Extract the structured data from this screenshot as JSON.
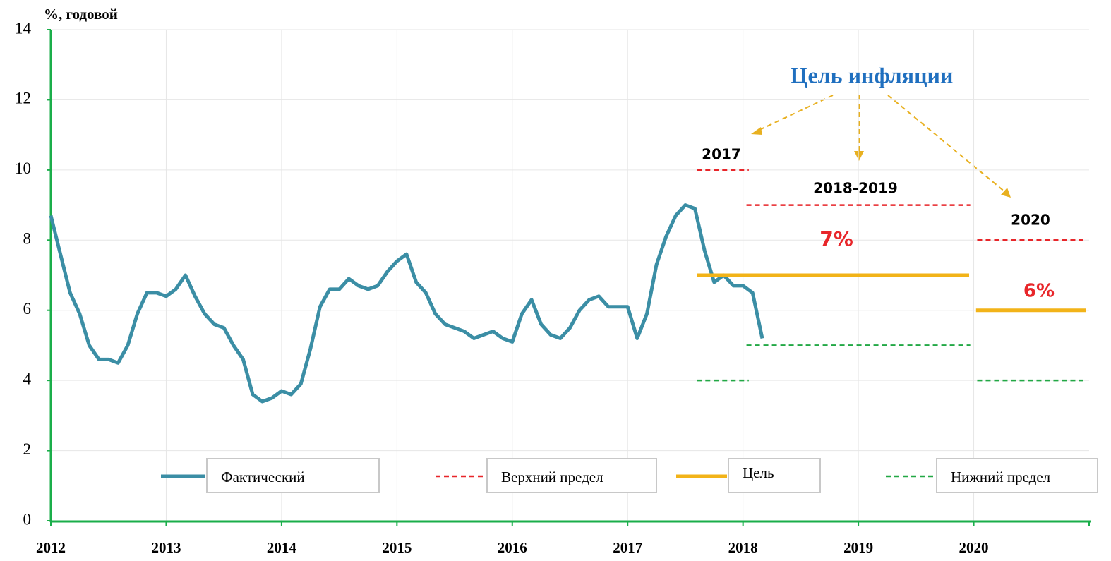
{
  "chart_data": {
    "type": "line",
    "y_label": "%, годовой",
    "annotations": [
      "Цель инфляции",
      "2017",
      "2018-2019",
      "2020",
      "7%",
      "6%"
    ],
    "xlim": [
      2012,
      2021
    ],
    "xticks": [
      2012,
      2013,
      2014,
      2015,
      2016,
      2017,
      2018,
      2019,
      2020
    ],
    "ylim": [
      0,
      14
    ],
    "yticks": [
      0,
      2,
      4,
      6,
      8,
      10,
      12,
      14
    ],
    "grid": true,
    "series": [
      {
        "name": "Фактический",
        "color": "#3b8ea5",
        "style": "solid",
        "x": [
          2012.0,
          2012.083,
          2012.167,
          2012.25,
          2012.333,
          2012.417,
          2012.5,
          2012.583,
          2012.667,
          2012.75,
          2012.833,
          2012.917,
          2013.0,
          2013.083,
          2013.167,
          2013.25,
          2013.333,
          2013.417,
          2013.5,
          2013.583,
          2013.667,
          2013.75,
          2013.833,
          2013.917,
          2014.0,
          2014.083,
          2014.167,
          2014.25,
          2014.333,
          2014.417,
          2014.5,
          2014.583,
          2014.667,
          2014.75,
          2014.833,
          2014.917,
          2015.0,
          2015.083,
          2015.167,
          2015.25,
          2015.333,
          2015.417,
          2015.5,
          2015.583,
          2015.667,
          2015.75,
          2015.833,
          2015.917,
          2016.0,
          2016.083,
          2016.167,
          2016.25,
          2016.333,
          2016.417,
          2016.5,
          2016.583,
          2016.667,
          2016.75,
          2016.833,
          2016.917,
          2017.0,
          2017.083,
          2017.167,
          2017.25,
          2017.333,
          2017.417,
          2017.5,
          2017.583,
          2017.667,
          2017.75,
          2017.833,
          2017.917,
          2018.0,
          2018.083,
          2018.167
        ],
        "values": [
          8.7,
          7.6,
          6.5,
          5.9,
          5.0,
          4.6,
          4.6,
          4.5,
          5.0,
          5.9,
          6.5,
          6.5,
          6.4,
          6.6,
          7.0,
          6.4,
          5.9,
          5.6,
          5.5,
          5.0,
          4.6,
          3.6,
          3.4,
          3.5,
          3.7,
          3.6,
          3.9,
          4.9,
          6.1,
          6.6,
          6.6,
          6.9,
          6.7,
          6.6,
          6.7,
          7.1,
          7.4,
          7.6,
          6.8,
          6.5,
          5.9,
          5.6,
          5.5,
          5.4,
          5.2,
          5.3,
          5.4,
          5.2,
          5.1,
          5.9,
          6.3,
          5.6,
          5.3,
          5.2,
          5.5,
          6.0,
          6.3,
          6.4,
          6.1,
          6.1,
          6.1,
          5.2,
          5.9,
          7.3,
          8.1,
          8.7,
          9.0,
          8.9,
          7.7,
          6.8,
          7.0,
          6.7,
          6.7,
          6.5,
          5.2
        ]
      },
      {
        "name": "Верхний предел",
        "color": "#e8262a",
        "style": "dashed",
        "x": [
          2017.6,
          2018.05,
          2018.04,
          2018.03,
          2019.97,
          2020.0,
          2020.03,
          2020.95
        ],
        "values": [
          10,
          10,
          null,
          9,
          9,
          null,
          8,
          8
        ]
      },
      {
        "name": "Цель",
        "color": "#f2b318",
        "style": "solid",
        "x": [
          2017.6,
          2019.96,
          2019.99,
          2020.02,
          2020.97
        ],
        "values": [
          7,
          7,
          null,
          6,
          6
        ]
      },
      {
        "name": "Нижний предел",
        "color": "#22a845",
        "style": "dashed",
        "x": [
          2017.6,
          2018.05,
          2018.04,
          2018.03,
          2019.97,
          2020.0,
          2020.03,
          2020.95
        ],
        "values": [
          4,
          4,
          null,
          5,
          5,
          null,
          4,
          4
        ]
      }
    ]
  }
}
